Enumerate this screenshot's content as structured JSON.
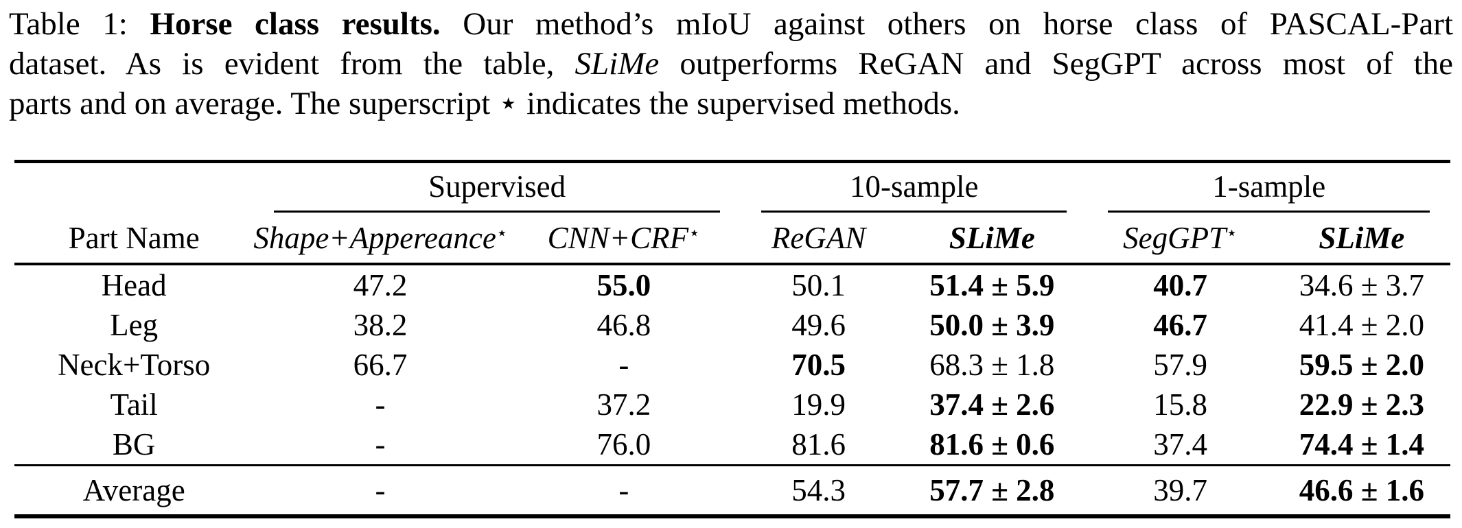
{
  "caption": {
    "label": "Table 1:",
    "bold_title": "Horse class results.",
    "line1_rest": "Our method’s mIoU against others on horse class of PASCAL-Part",
    "line2_pre": "dataset. As is evident from the table,",
    "line2_italic": "SLiMe",
    "line2_post": "outperforms ReGAN and SegGPT across most of the",
    "line3": "parts and on average. The superscript ⋆ indicates the supervised methods."
  },
  "table": {
    "star_symbol": "⋆",
    "group_headers": [
      {
        "label": "Supervised",
        "span": 2
      },
      {
        "label": "10-sample",
        "span": 2
      },
      {
        "label": "1-sample",
        "span": 2
      }
    ],
    "column_headers": [
      {
        "label": "Part Name",
        "italic": false,
        "bold": false,
        "star": false
      },
      {
        "label": "Shape+Appereance",
        "italic": true,
        "bold": false,
        "star": true
      },
      {
        "label": "CNN+CRF",
        "italic": true,
        "bold": false,
        "star": true
      },
      {
        "label": "ReGAN",
        "italic": true,
        "bold": false,
        "star": false
      },
      {
        "label": "SLiMe",
        "italic": true,
        "bold": true,
        "star": false
      },
      {
        "label": "SegGPT",
        "italic": true,
        "bold": false,
        "star": true
      },
      {
        "label": "SLiMe",
        "italic": true,
        "bold": true,
        "star": false
      }
    ],
    "rows": [
      {
        "part": "Head",
        "values": [
          {
            "text": "47.2",
            "bold": false
          },
          {
            "text": "55.0",
            "bold": true
          },
          {
            "text": "50.1",
            "bold": false
          },
          {
            "text": "51.4 ± 5.9",
            "bold": true
          },
          {
            "text": "40.7",
            "bold": true
          },
          {
            "text": "34.6 ± 3.7",
            "bold": false
          }
        ]
      },
      {
        "part": "Leg",
        "values": [
          {
            "text": "38.2",
            "bold": false
          },
          {
            "text": "46.8",
            "bold": false
          },
          {
            "text": "49.6",
            "bold": false
          },
          {
            "text": "50.0 ± 3.9",
            "bold": true
          },
          {
            "text": "46.7",
            "bold": true
          },
          {
            "text": "41.4 ± 2.0",
            "bold": false
          }
        ]
      },
      {
        "part": "Neck+Torso",
        "values": [
          {
            "text": "66.7",
            "bold": false
          },
          {
            "text": "-",
            "bold": false
          },
          {
            "text": "70.5",
            "bold": true
          },
          {
            "text": "68.3 ± 1.8",
            "bold": false
          },
          {
            "text": "57.9",
            "bold": false
          },
          {
            "text": "59.5 ± 2.0",
            "bold": true
          }
        ]
      },
      {
        "part": "Tail",
        "values": [
          {
            "text": "-",
            "bold": false
          },
          {
            "text": "37.2",
            "bold": false
          },
          {
            "text": "19.9",
            "bold": false
          },
          {
            "text": "37.4 ± 2.6",
            "bold": true
          },
          {
            "text": "15.8",
            "bold": false
          },
          {
            "text": "22.9 ± 2.3",
            "bold": true
          }
        ]
      },
      {
        "part": "BG",
        "values": [
          {
            "text": "-",
            "bold": false
          },
          {
            "text": "76.0",
            "bold": false
          },
          {
            "text": "81.6",
            "bold": false
          },
          {
            "text": "81.6 ± 0.6",
            "bold": true
          },
          {
            "text": "37.4",
            "bold": false
          },
          {
            "text": "74.4 ± 1.4",
            "bold": true
          }
        ]
      }
    ],
    "footer_row": {
      "part": "Average",
      "values": [
        {
          "text": "-",
          "bold": false
        },
        {
          "text": "-",
          "bold": false
        },
        {
          "text": "54.3",
          "bold": false
        },
        {
          "text": "57.7 ± 2.8",
          "bold": true
        },
        {
          "text": "39.7",
          "bold": false
        },
        {
          "text": "46.6 ± 1.6",
          "bold": true
        }
      ]
    }
  }
}
